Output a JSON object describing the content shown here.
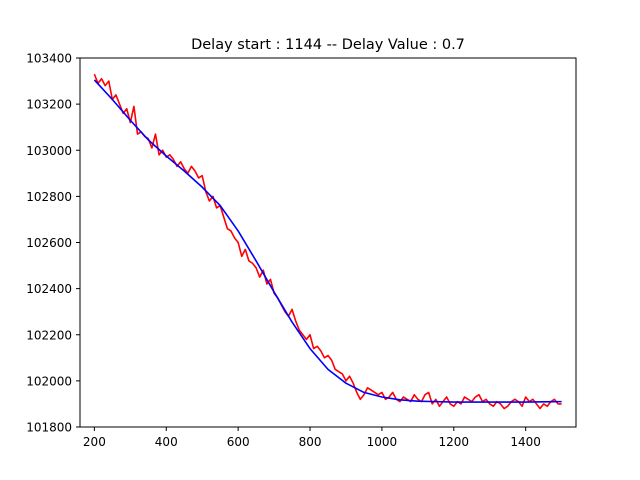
{
  "chart_data": {
    "type": "line",
    "title": "Delay start : 1144 -- Delay Value : 0.7",
    "xlabel": "",
    "ylabel": "",
    "xlim": [
      160,
      1540
    ],
    "ylim": [
      101800,
      103400
    ],
    "x_ticks": [
      200,
      400,
      600,
      800,
      1000,
      1200,
      1400
    ],
    "x_tick_labels": [
      "200",
      "400",
      "600",
      "800",
      "1000",
      "1200",
      "1400"
    ],
    "y_ticks": [
      101800,
      102000,
      102200,
      102400,
      102600,
      102800,
      103000,
      103200,
      103400
    ],
    "y_tick_labels": [
      "101800",
      "102000",
      "102200",
      "102400",
      "102600",
      "102800",
      "103000",
      "103200",
      "103400"
    ],
    "grid": false,
    "legend": "none",
    "series": [
      {
        "color": "#ff0000",
        "x": [
          200,
          210,
          220,
          230,
          240,
          250,
          260,
          270,
          280,
          290,
          300,
          310,
          320,
          330,
          340,
          350,
          360,
          370,
          380,
          390,
          400,
          410,
          420,
          430,
          440,
          450,
          460,
          470,
          480,
          490,
          500,
          510,
          520,
          530,
          540,
          550,
          560,
          570,
          580,
          590,
          600,
          610,
          620,
          630,
          640,
          650,
          660,
          670,
          680,
          690,
          700,
          710,
          720,
          730,
          740,
          750,
          760,
          770,
          780,
          790,
          800,
          810,
          820,
          830,
          840,
          850,
          860,
          870,
          880,
          890,
          900,
          910,
          920,
          930,
          940,
          950,
          960,
          970,
          980,
          990,
          1000,
          1010,
          1020,
          1030,
          1040,
          1050,
          1060,
          1070,
          1080,
          1090,
          1100,
          1110,
          1120,
          1130,
          1140,
          1150,
          1160,
          1170,
          1180,
          1190,
          1200,
          1210,
          1220,
          1230,
          1240,
          1250,
          1260,
          1270,
          1280,
          1290,
          1300,
          1310,
          1320,
          1330,
          1340,
          1350,
          1360,
          1370,
          1380,
          1390,
          1400,
          1410,
          1420,
          1430,
          1440,
          1450,
          1460,
          1470,
          1480,
          1490,
          1500
        ],
        "y": [
          103330,
          103290,
          103310,
          103280,
          103300,
          103220,
          103240,
          103200,
          103160,
          103180,
          103120,
          103190,
          103070,
          103080,
          103060,
          103050,
          103010,
          103070,
          102980,
          103000,
          102970,
          102980,
          102960,
          102930,
          102950,
          102920,
          102900,
          102930,
          102910,
          102880,
          102890,
          102820,
          102780,
          102800,
          102750,
          102760,
          102710,
          102660,
          102650,
          102620,
          102600,
          102540,
          102570,
          102520,
          102510,
          102490,
          102450,
          102480,
          102420,
          102440,
          102380,
          102360,
          102330,
          102300,
          102280,
          102310,
          102260,
          102220,
          102200,
          102180,
          102200,
          102140,
          102150,
          102130,
          102100,
          102110,
          102090,
          102050,
          102040,
          102030,
          102000,
          102020,
          101990,
          101950,
          101920,
          101940,
          101970,
          101960,
          101950,
          101940,
          101950,
          101920,
          101930,
          101950,
          101920,
          101910,
          101930,
          101920,
          101910,
          101940,
          101920,
          101910,
          101940,
          101950,
          101900,
          101920,
          101890,
          101910,
          101930,
          101900,
          101890,
          101910,
          101900,
          101930,
          101920,
          101910,
          101930,
          101940,
          101910,
          101920,
          101900,
          101890,
          101910,
          101900,
          101880,
          101890,
          101910,
          101920,
          101910,
          101890,
          101930,
          101910,
          101920,
          101900,
          101880,
          101900,
          101890,
          101910,
          101920,
          101900,
          101900
        ]
      },
      {
        "color": "#0000ff",
        "x": [
          200,
          250,
          300,
          350,
          400,
          450,
          500,
          550,
          600,
          650,
          700,
          750,
          800,
          850,
          900,
          950,
          1000,
          1050,
          1100,
          1150,
          1200,
          1250,
          1300,
          1350,
          1400,
          1450,
          1500
        ],
        "y": [
          103305,
          103220,
          103130,
          103045,
          102975,
          102910,
          102840,
          102760,
          102650,
          102520,
          102385,
          102255,
          102140,
          102050,
          101990,
          101950,
          101930,
          101918,
          101912,
          101910,
          101908,
          101908,
          101908,
          101908,
          101908,
          101909,
          101910
        ]
      }
    ]
  }
}
